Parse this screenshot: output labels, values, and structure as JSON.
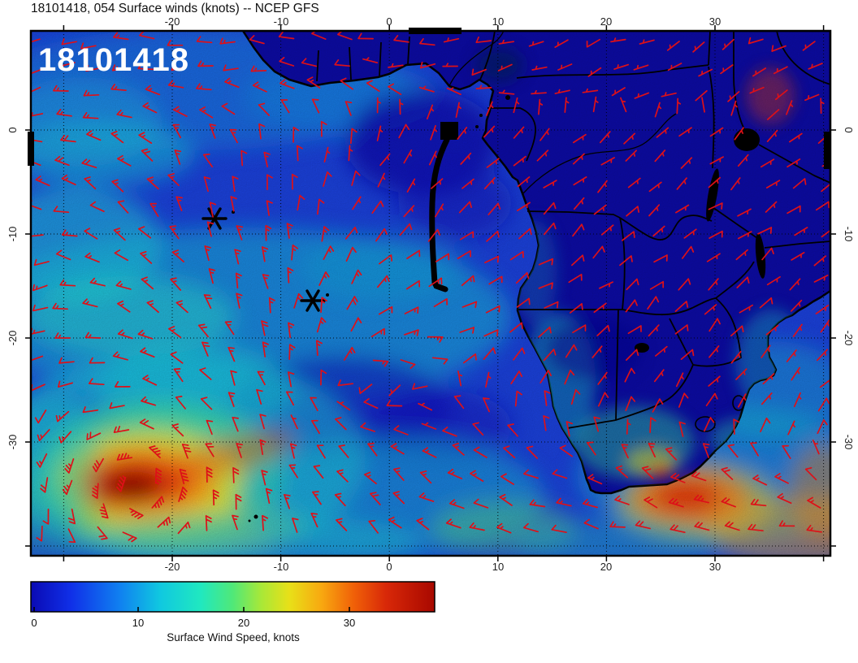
{
  "title": "18101418, 054 Surface winds (knots) -- NCEP GFS",
  "run_label": "18101418",
  "axes": {
    "lon_tick_labels": [
      "-20",
      "-10",
      "0",
      "10",
      "20",
      "30"
    ],
    "lat_tick_labels": [
      "0",
      "-10",
      "-20",
      "-30"
    ]
  },
  "colorbar": {
    "label": "Surface Wind Speed, knots",
    "tick_labels": [
      "0",
      "10",
      "20",
      "30"
    ],
    "min_knots": 0,
    "max_knots": 38
  },
  "colors": {
    "ocean_base": "#1a3ed0",
    "land": "#0c0b9c",
    "coastline": "#000000",
    "wind_barb": "#dd1018",
    "gridline": "#000000",
    "run_label_text": "#ffffff",
    "palette": [
      "#0a0ab4",
      "#1030e8",
      "#1080f0",
      "#10c8e0",
      "#20e8c0",
      "#50e878",
      "#a8e838",
      "#e8e018",
      "#f8a810",
      "#f06008",
      "#d82808",
      "#a80800"
    ]
  },
  "chart_data": {
    "type": "heatmap",
    "title": "18101418, 054 Surface winds (knots) -- NCEP GFS",
    "model": "NCEP GFS",
    "run_id": "18101418",
    "forecast_hour": 54,
    "variable": "Surface wind speed",
    "units": "knots",
    "overlay": "red wind barbs on regular lat/lon grid",
    "x_axis": {
      "name": "longitude (deg)",
      "ticks": [
        -20,
        -10,
        0,
        10,
        20,
        30
      ],
      "range_est": [
        -33,
        40.5
      ]
    },
    "y_axis": {
      "name": "latitude (deg)",
      "ticks": [
        0,
        -10,
        -20,
        -30
      ],
      "range_est": [
        9.5,
        -41
      ]
    },
    "color_scale": {
      "label": "Surface Wind Speed, knots",
      "ticks": [
        0,
        10,
        20,
        30
      ],
      "min": 0,
      "max": 38
    },
    "region": "South Atlantic Ocean and southern Africa",
    "notable_features": [
      {
        "feature": "intense storm with dark-red core (strongest winds on map)",
        "lon_est": -23,
        "lat_est": -32,
        "speed_knots_est": 38
      },
      {
        "feature": "southeast trade-wind band of moderate winds across tropical South Atlantic",
        "lat_range_est": [
          -8,
          -18
        ],
        "speed_knots_est": 15
      },
      {
        "feature": "light winds over equatorial Gulf of Guinea and African interior",
        "speed_knots_est": 5
      },
      {
        "feature": "strong wind band south and southeast of South Africa",
        "lon_est": 27,
        "lat_est": -35,
        "speed_knots_est": 30
      }
    ],
    "markers": [
      {
        "type": "asterisk",
        "lon_est": -16,
        "lat_est": -8.5
      },
      {
        "type": "asterisk",
        "lon_est": -7,
        "lat_est": -16.5
      },
      {
        "type": "filled square with thick track line",
        "lon_est": 5.5,
        "lat_est": 0.2,
        "track_end_lon_est": 4,
        "track_end_lat_est": -15
      }
    ]
  }
}
